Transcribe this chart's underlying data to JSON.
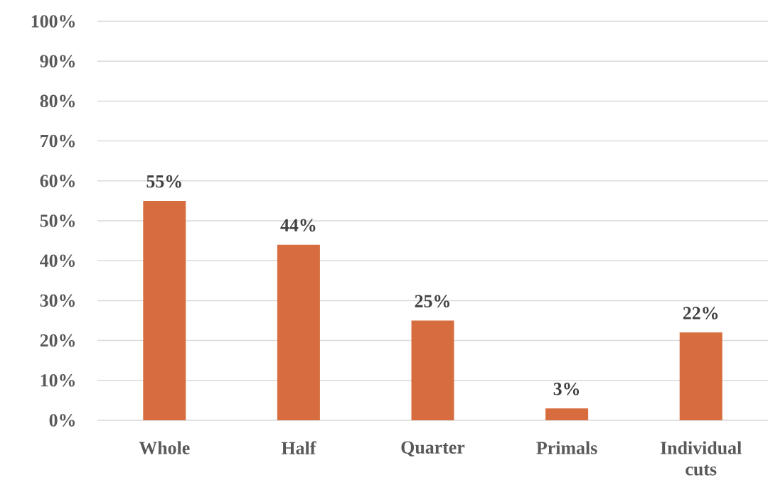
{
  "chart_data": {
    "type": "bar",
    "categories": [
      "Whole",
      "Half",
      "Quarter",
      "Primals",
      "Individual cuts"
    ],
    "values": [
      55,
      44,
      25,
      3,
      22
    ],
    "value_labels": [
      "55%",
      "44%",
      "25%",
      "3%",
      "22%"
    ],
    "color": "#d76d3f",
    "ylim": [
      0,
      100
    ],
    "yticks": [
      {
        "value": 0,
        "label": "0%"
      },
      {
        "value": 10,
        "label": "10%"
      },
      {
        "value": 20,
        "label": "20%"
      },
      {
        "value": 30,
        "label": "30%"
      },
      {
        "value": 40,
        "label": "40%"
      },
      {
        "value": 50,
        "label": "50%"
      },
      {
        "value": 60,
        "label": "60%"
      },
      {
        "value": 70,
        "label": "70%"
      },
      {
        "value": 80,
        "label": "80%"
      },
      {
        "value": 90,
        "label": "90%"
      },
      {
        "value": 100,
        "label": "100%"
      }
    ],
    "grid": "y"
  }
}
